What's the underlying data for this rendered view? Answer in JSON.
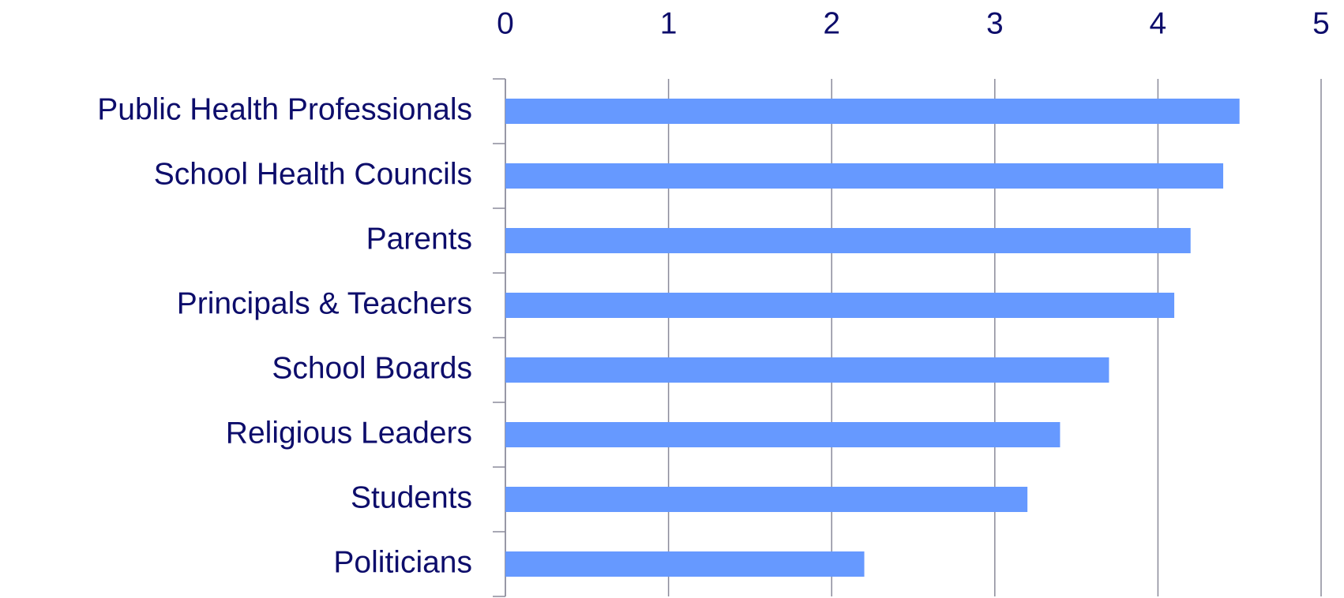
{
  "chart_data": {
    "type": "bar",
    "orientation": "horizontal",
    "categories": [
      "Public Health Professionals",
      "School Health Councils",
      "Parents",
      "Principals & Teachers",
      "School Boards",
      "Religious Leaders",
      "Students",
      "Politicians"
    ],
    "values": [
      4.5,
      4.4,
      4.2,
      4.1,
      3.7,
      3.4,
      3.2,
      2.2
    ],
    "color": "#6699ff",
    "xlim": [
      0,
      5
    ],
    "xticks": [
      0,
      1,
      2,
      3,
      4,
      5
    ],
    "grid": true
  }
}
